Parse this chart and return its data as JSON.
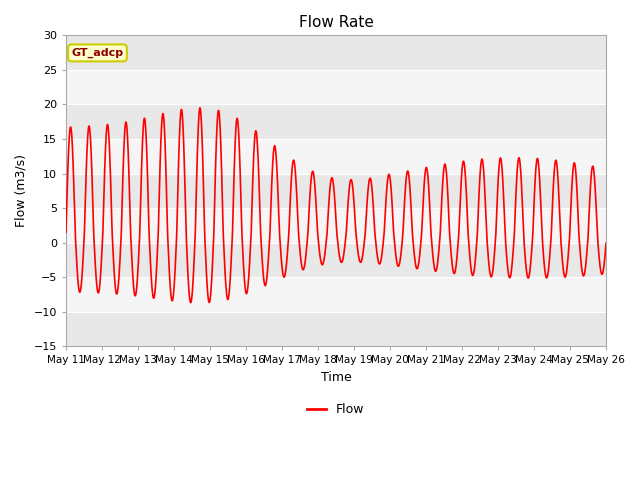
{
  "title": "Flow Rate",
  "xlabel": "Time",
  "ylabel": "Flow (m3/s)",
  "legend_label": "Flow",
  "annotation_text": "GT_adcp",
  "ylim": [
    -15,
    30
  ],
  "line_color": "#ff0000",
  "line_width": 1.2,
  "title_fontsize": 11,
  "axis_fontsize": 9,
  "tick_fontsize": 8,
  "x_tick_labels": [
    "May 11",
    "May 12",
    "May 13",
    "May 14",
    "May 15",
    "May 16",
    "May 17",
    "May 18",
    "May 19",
    "May 20",
    "May 21",
    "May 22",
    "May 23",
    "May 24",
    "May 25",
    "May 26"
  ],
  "bg_outer": "#ffffff",
  "bg_plot": "#f0f0f0",
  "band_light": "#f5f5f5",
  "band_dark": "#e8e8e8",
  "grid_color": "#ffffff"
}
